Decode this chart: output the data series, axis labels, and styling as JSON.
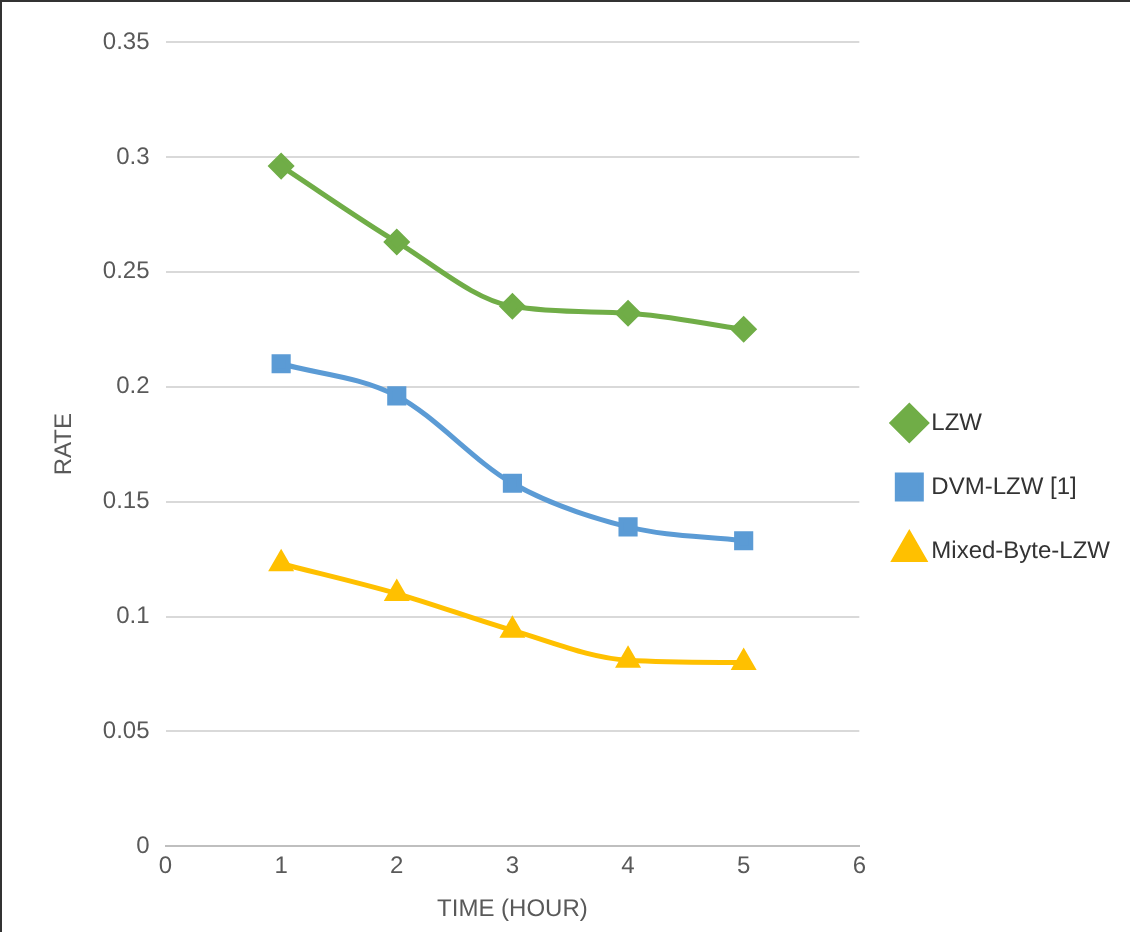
{
  "chart_data": {
    "type": "line",
    "xlabel": "TIME (HOUR)",
    "ylabel": "RATE",
    "x": [
      1,
      2,
      3,
      4,
      5
    ],
    "series": [
      {
        "name": "LZW",
        "color": "#70ad47",
        "marker": "diamond",
        "values": [
          0.296,
          0.263,
          0.235,
          0.232,
          0.225
        ]
      },
      {
        "name": "DVM-LZW [1]",
        "color": "#5b9bd5",
        "marker": "square",
        "values": [
          0.21,
          0.196,
          0.158,
          0.139,
          0.133
        ]
      },
      {
        "name": "Mixed-Byte-LZW",
        "color": "#ffc000",
        "marker": "triangle",
        "values": [
          0.123,
          0.11,
          0.094,
          0.081,
          0.08
        ]
      }
    ],
    "xlim": [
      0,
      6
    ],
    "xticks": [
      0,
      1,
      2,
      3,
      4,
      5,
      6
    ],
    "ylim": [
      0,
      0.35
    ],
    "yticks": [
      0,
      0.05,
      0.1,
      0.15,
      0.2,
      0.25,
      0.3,
      0.35
    ],
    "grid": "y",
    "legend": "right",
    "line_style": "solid"
  }
}
